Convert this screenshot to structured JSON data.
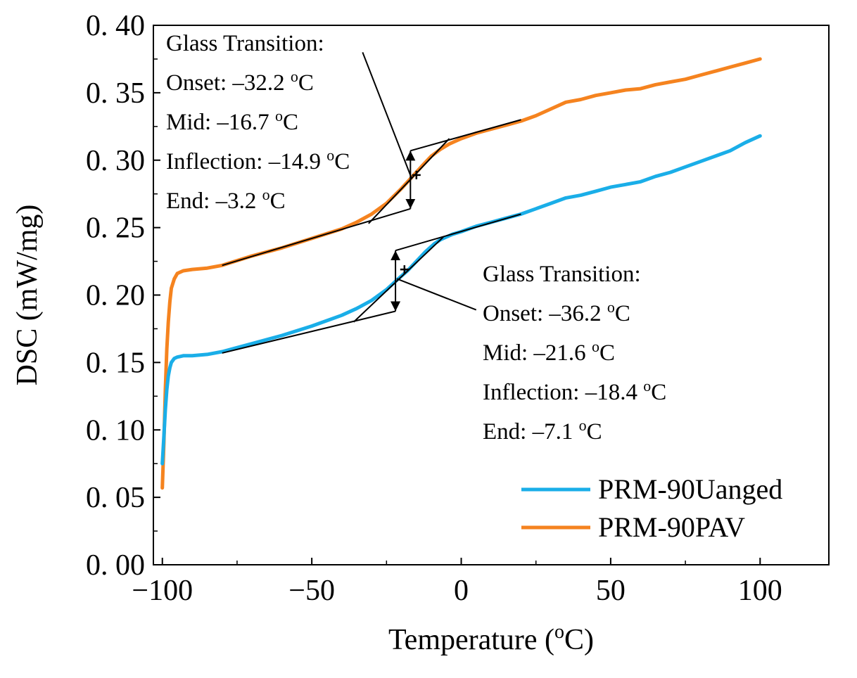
{
  "chart_data": {
    "type": "line",
    "title": "",
    "xlabel": "Temperature (",
    "xlabel_sup": "o",
    "xlabel_unit": "C)",
    "ylabel": "DSC (mW/mg)",
    "xlim": [
      -103,
      123
    ],
    "ylim": [
      0.0,
      0.4
    ],
    "x_ticks": [
      -100,
      -50,
      0,
      50,
      100
    ],
    "x_tick_labels": [
      "−100",
      "−50",
      "0",
      "50",
      "100"
    ],
    "y_ticks": [
      0.0,
      0.05,
      0.1,
      0.15,
      0.2,
      0.25,
      0.3,
      0.35,
      0.4
    ],
    "y_tick_labels": [
      "0. 00",
      "0. 05",
      "0. 10",
      "0. 15",
      "0. 20",
      "0. 25",
      "0. 30",
      "0. 35",
      "0. 40"
    ],
    "legend": {
      "position": "bottom-right"
    },
    "series": [
      {
        "name": "PRM-90Uanged",
        "color": "#1aaee8",
        "x": [
          -100,
          -99.5,
          -99,
          -98.5,
          -98,
          -97.5,
          -97,
          -96,
          -95,
          -93,
          -90,
          -85,
          -80,
          -70,
          -60,
          -50,
          -40,
          -35,
          -30,
          -25,
          -21.6,
          -18,
          -15,
          -12,
          -9,
          -7,
          -5,
          -3,
          0,
          5,
          10,
          15,
          20,
          25,
          30,
          35,
          40,
          45,
          50,
          55,
          60,
          65,
          70,
          75,
          80,
          85,
          90,
          95,
          100
        ],
        "y": [
          0.075,
          0.095,
          0.115,
          0.13,
          0.14,
          0.146,
          0.15,
          0.153,
          0.154,
          0.155,
          0.155,
          0.156,
          0.158,
          0.164,
          0.17,
          0.177,
          0.185,
          0.19,
          0.196,
          0.204,
          0.211,
          0.218,
          0.225,
          0.232,
          0.238,
          0.241,
          0.243,
          0.245,
          0.247,
          0.251,
          0.254,
          0.257,
          0.26,
          0.264,
          0.268,
          0.272,
          0.274,
          0.277,
          0.28,
          0.282,
          0.284,
          0.288,
          0.291,
          0.295,
          0.299,
          0.303,
          0.307,
          0.313,
          0.318
        ]
      },
      {
        "name": "PRM-90PAV",
        "color": "#f5831f",
        "x": [
          -100,
          -99.5,
          -99,
          -98.5,
          -98,
          -97.5,
          -97,
          -96,
          -95,
          -93,
          -90,
          -85,
          -80,
          -70,
          -60,
          -50,
          -40,
          -35,
          -30,
          -25,
          -20,
          -16.7,
          -13,
          -10,
          -7,
          -4,
          -2,
          0,
          5,
          10,
          15,
          20,
          25,
          30,
          35,
          40,
          45,
          50,
          55,
          60,
          65,
          70,
          75,
          80,
          85,
          90,
          95,
          100
        ],
        "y": [
          0.057,
          0.09,
          0.13,
          0.16,
          0.18,
          0.195,
          0.205,
          0.212,
          0.216,
          0.218,
          0.219,
          0.22,
          0.222,
          0.229,
          0.235,
          0.242,
          0.249,
          0.254,
          0.26,
          0.268,
          0.279,
          0.287,
          0.296,
          0.303,
          0.308,
          0.312,
          0.314,
          0.316,
          0.32,
          0.323,
          0.326,
          0.329,
          0.333,
          0.338,
          0.343,
          0.345,
          0.348,
          0.35,
          0.352,
          0.353,
          0.356,
          0.358,
          0.36,
          0.363,
          0.366,
          0.369,
          0.372,
          0.375
        ]
      }
    ],
    "analysis": [
      {
        "series": "PRM-90PAV",
        "baseline_before": [
          [
            -80,
            0.222
          ],
          [
            -17,
            0.264
          ]
        ],
        "baseline_after": [
          [
            -17,
            0.307
          ],
          [
            20,
            0.33
          ]
        ],
        "tangent": [
          [
            -31,
            0.253
          ],
          [
            -4,
            0.316
          ]
        ],
        "arrow": {
          "x": -17,
          "y1": 0.264,
          "y2": 0.307
        },
        "mark": [
          -15,
          0.289
        ],
        "label_pointer": [
          [
            -16.5,
            0.286
          ],
          [
            -33,
            0.38
          ]
        ]
      },
      {
        "series": "PRM-90Uanged",
        "baseline_before": [
          [
            -80,
            0.157
          ],
          [
            -22,
            0.188
          ]
        ],
        "baseline_after": [
          [
            -22,
            0.233
          ],
          [
            20,
            0.26
          ]
        ],
        "tangent": [
          [
            -36,
            0.18
          ],
          [
            -6,
            0.243
          ]
        ],
        "arrow": {
          "x": -22,
          "y1": 0.188,
          "y2": 0.233
        },
        "mark": [
          -19,
          0.219
        ],
        "label_pointer": [
          [
            -21.5,
            0.212
          ],
          [
            5,
            0.189
          ]
        ]
      }
    ],
    "annotations": [
      {
        "lines": [
          {
            "pre": "Glass Transition:",
            "sup": "",
            "post": ""
          },
          {
            "pre": "Onset: –32.2 ",
            "sup": "o",
            "post": "C"
          },
          {
            "pre": "Mid: –16.7 ",
            "sup": "o",
            "post": "C"
          },
          {
            "pre": "Inflection: –14.9 ",
            "sup": "o",
            "post": "C"
          },
          {
            "pre": "End: –3.2 ",
            "sup": "o",
            "post": "C"
          }
        ]
      },
      {
        "lines": [
          {
            "pre": "Glass Transition:",
            "sup": "",
            "post": ""
          },
          {
            "pre": "Onset: –36.2 ",
            "sup": "o",
            "post": "C"
          },
          {
            "pre": "Mid: –21.6 ",
            "sup": "o",
            "post": "C"
          },
          {
            "pre": "Inflection: –18.4 ",
            "sup": "o",
            "post": "C"
          },
          {
            "pre": "End: –7.1 ",
            "sup": "o",
            "post": "C"
          }
        ]
      }
    ]
  }
}
